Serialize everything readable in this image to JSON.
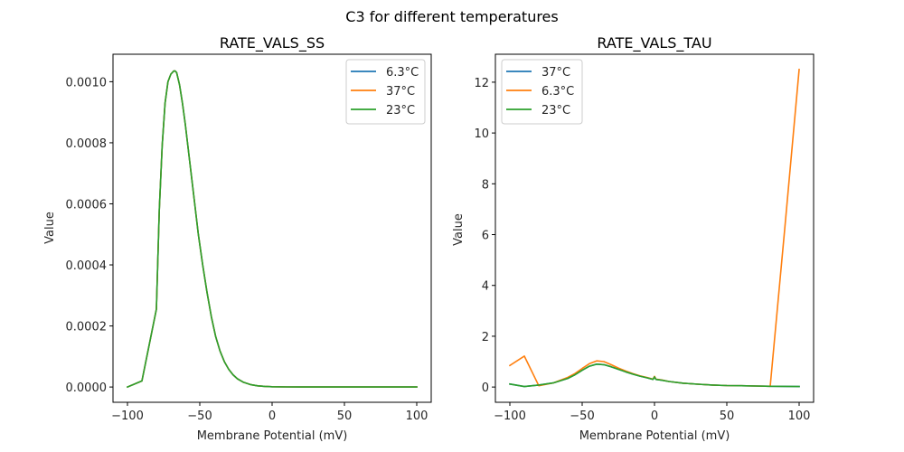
{
  "figure": {
    "suptitle": "C3 for different temperatures"
  },
  "chart_data": [
    {
      "type": "line",
      "title": "RATE_VALS_SS",
      "xlabel": "Membrane Potential (mV)",
      "ylabel": "Value",
      "xlim": [
        -110,
        110
      ],
      "ylim": [
        -5e-05,
        0.00109
      ],
      "xticks": [
        -100,
        -50,
        0,
        50,
        100
      ],
      "xtick_labels": [
        "−100",
        "−50",
        "0",
        "50",
        "100"
      ],
      "yticks": [
        0,
        0.0002,
        0.0004,
        0.0006,
        0.0008,
        0.001
      ],
      "ytick_labels": [
        "0.0000",
        "0.0002",
        "0.0004",
        "0.0006",
        "0.0008",
        "0.0010"
      ],
      "grid": false,
      "legend_position": "upper-right",
      "x": [
        -100,
        -90,
        -80,
        -78,
        -76,
        -74,
        -72,
        -70,
        -68,
        -67,
        -66,
        -64,
        -62,
        -60,
        -57,
        -54,
        -51,
        -48,
        -45,
        -42,
        -39,
        -36,
        -33,
        -30,
        -27,
        -24,
        -20,
        -15,
        -10,
        -5,
        0,
        10,
        20,
        40,
        60,
        80,
        100
      ],
      "series": [
        {
          "name": "6.3°C",
          "color": "#1f77b4",
          "values": [
            0,
            2e-05,
            0.000255,
            0.00058,
            0.00079,
            0.00093,
            0.001,
            0.001025,
            0.001035,
            0.001035,
            0.00103,
            0.00099,
            0.00093,
            0.00086,
            0.00074,
            0.00062,
            0.0005,
            0.0004,
            0.00031,
            0.00023,
            0.000165,
            0.000118,
            8.3e-05,
            5.8e-05,
            4e-05,
            2.7e-05,
            1.6e-05,
            8e-06,
            4e-06,
            2e-06,
            1e-06,
            3e-07,
            1e-07,
            0,
            0,
            0,
            0
          ]
        },
        {
          "name": "37°C",
          "color": "#ff7f0e",
          "values": [
            0,
            2e-05,
            0.000255,
            0.00058,
            0.00079,
            0.00093,
            0.001,
            0.001025,
            0.001035,
            0.001035,
            0.00103,
            0.00099,
            0.00093,
            0.00086,
            0.00074,
            0.00062,
            0.0005,
            0.0004,
            0.00031,
            0.00023,
            0.000165,
            0.000118,
            8.3e-05,
            5.8e-05,
            4e-05,
            2.7e-05,
            1.6e-05,
            8e-06,
            4e-06,
            2e-06,
            1e-06,
            3e-07,
            1e-07,
            0,
            0,
            0,
            0
          ]
        },
        {
          "name": "23°C",
          "color": "#2ca02c",
          "values": [
            0,
            2e-05,
            0.000255,
            0.00058,
            0.00079,
            0.00093,
            0.001,
            0.001025,
            0.001035,
            0.001035,
            0.00103,
            0.00099,
            0.00093,
            0.00086,
            0.00074,
            0.00062,
            0.0005,
            0.0004,
            0.00031,
            0.00023,
            0.000165,
            0.000118,
            8.3e-05,
            5.8e-05,
            4e-05,
            2.7e-05,
            1.6e-05,
            8e-06,
            4e-06,
            2e-06,
            1e-06,
            3e-07,
            1e-07,
            0,
            0,
            0,
            0
          ]
        }
      ]
    },
    {
      "type": "line",
      "title": "RATE_VALS_TAU",
      "xlabel": "Membrane Potential (mV)",
      "ylabel": "Value",
      "xlim": [
        -110,
        110
      ],
      "ylim": [
        -0.6,
        13.1
      ],
      "xticks": [
        -100,
        -50,
        0,
        50,
        100
      ],
      "xtick_labels": [
        "−100",
        "−50",
        "0",
        "50",
        "100"
      ],
      "yticks": [
        0,
        2,
        4,
        6,
        8,
        10,
        12
      ],
      "ytick_labels": [
        "0",
        "2",
        "4",
        "6",
        "8",
        "10",
        "12"
      ],
      "grid": false,
      "legend_position": "upper-left",
      "x": [
        -100,
        -90,
        -80,
        -70,
        -60,
        -55,
        -50,
        -45,
        -40,
        -35,
        -30,
        -25,
        -20,
        -15,
        -10,
        -5,
        -1,
        0,
        1,
        5,
        10,
        20,
        30,
        40,
        50,
        60,
        70,
        80,
        90,
        100
      ],
      "series": [
        {
          "name": "37°C",
          "color": "#1f77b4",
          "values": [
            0.12,
            0.02,
            0.08,
            0.16,
            0.34,
            0.48,
            0.66,
            0.82,
            0.9,
            0.88,
            0.8,
            0.7,
            0.6,
            0.51,
            0.43,
            0.36,
            0.3,
            0.4,
            0.3,
            0.27,
            0.22,
            0.15,
            0.11,
            0.08,
            0.06,
            0.05,
            0.04,
            0.03,
            0.025,
            0.02
          ]
        },
        {
          "name": "6.3°C",
          "color": "#ff7f0e",
          "values": [
            0.85,
            1.22,
            0.05,
            0.16,
            0.38,
            0.53,
            0.73,
            0.92,
            1.03,
            1.0,
            0.88,
            0.75,
            0.63,
            0.53,
            0.44,
            0.37,
            0.31,
            0.42,
            0.31,
            0.28,
            0.22,
            0.15,
            0.11,
            0.08,
            0.06,
            0.05,
            0.04,
            0.03,
            6.2,
            12.5
          ]
        },
        {
          "name": "23°C",
          "color": "#2ca02c",
          "values": [
            0.12,
            0.02,
            0.08,
            0.16,
            0.34,
            0.48,
            0.66,
            0.82,
            0.9,
            0.88,
            0.8,
            0.7,
            0.6,
            0.51,
            0.43,
            0.36,
            0.3,
            0.4,
            0.3,
            0.27,
            0.22,
            0.15,
            0.11,
            0.08,
            0.06,
            0.05,
            0.04,
            0.03,
            0.025,
            0.02
          ]
        }
      ]
    }
  ]
}
